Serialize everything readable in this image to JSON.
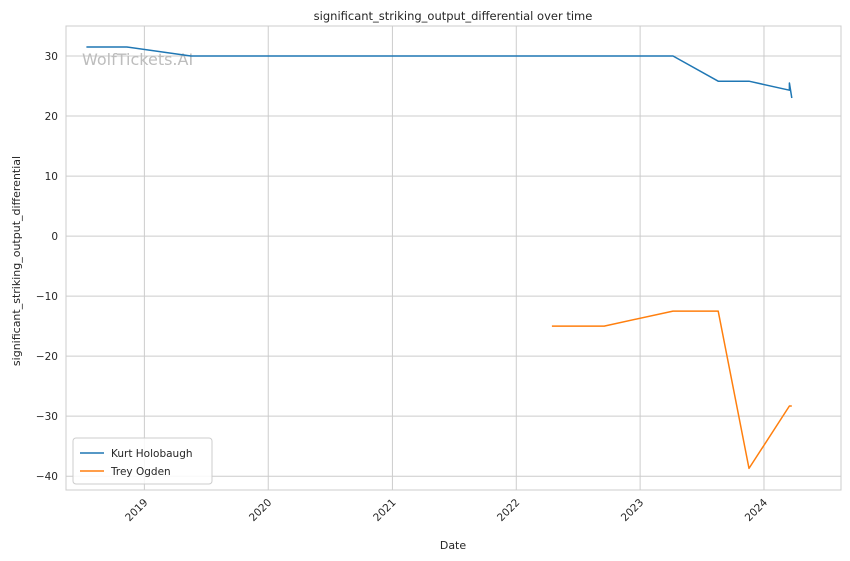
{
  "chart_data": {
    "type": "line",
    "title": "significant_striking_output_differential over time",
    "xlabel": "Date",
    "ylabel": "significant_striking_output_differential",
    "watermark": "WolfTickets.AI",
    "x_ticks": [
      "2019",
      "2020",
      "2021",
      "2022",
      "2023",
      "2024"
    ],
    "y_ticks": [
      "30",
      "20",
      "10",
      "0",
      "−10",
      "−20",
      "−30",
      "−40"
    ],
    "y_tick_values": [
      30,
      20,
      10,
      0,
      -10,
      -20,
      -30,
      -40
    ],
    "xlim": [
      "2018-05-15",
      "2024-08-15"
    ],
    "ylim": [
      -42.3,
      35
    ],
    "grid": true,
    "legend_position": "bottom-left",
    "series": [
      {
        "name": "Kurt Holobaugh",
        "color": "#1f77b4",
        "points": [
          {
            "x": "2018-07-14",
            "y": 31.5
          },
          {
            "x": "2018-11-10",
            "y": 31.5
          },
          {
            "x": "2019-05-18",
            "y": 30.0
          },
          {
            "x": "2023-04-08",
            "y": 30.0
          },
          {
            "x": "2023-08-19",
            "y": 25.8
          },
          {
            "x": "2023-11-18",
            "y": 25.8
          },
          {
            "x": "2024-03-16",
            "y": 24.3
          },
          {
            "x": "2024-03-16",
            "y": 25.5
          },
          {
            "x": "2024-03-23",
            "y": 23.0
          }
        ]
      },
      {
        "name": "Trey Ogden",
        "color": "#ff7f0e",
        "points": [
          {
            "x": "2022-04-16",
            "y": -15.0
          },
          {
            "x": "2022-09-17",
            "y": -15.0
          },
          {
            "x": "2023-04-08",
            "y": -12.5
          },
          {
            "x": "2023-08-19",
            "y": -12.5
          },
          {
            "x": "2023-11-18",
            "y": -38.7
          },
          {
            "x": "2024-03-16",
            "y": -28.3
          },
          {
            "x": "2024-03-23",
            "y": -28.3
          }
        ]
      }
    ]
  }
}
